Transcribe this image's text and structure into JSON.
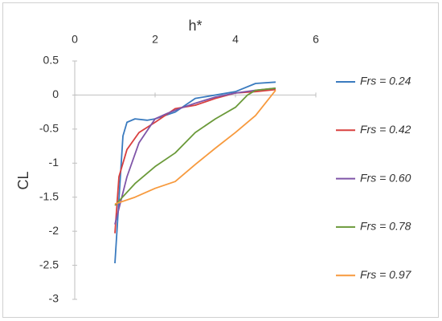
{
  "chart_data": {
    "type": "line",
    "x_label": "h*",
    "y_label": "CL",
    "xlim": [
      0,
      6
    ],
    "xticks": [
      0,
      2,
      4,
      6
    ],
    "ylim": [
      -3,
      0.5
    ],
    "yticks": [
      0.5,
      0,
      -0.5,
      -1,
      -1.5,
      -2,
      -2.5,
      -3
    ],
    "legend": "right",
    "series": [
      {
        "name": "Frs = 0.24",
        "color": "#3a7bbf",
        "x": [
          1,
          1.2,
          1.3,
          1.5,
          1.8,
          2,
          2.5,
          3,
          3.5,
          4,
          4.5,
          5
        ],
        "values": [
          -2.47,
          -0.6,
          -0.4,
          -0.35,
          -0.37,
          -0.35,
          -0.25,
          -0.05,
          0,
          0.05,
          0.17,
          0.19
        ]
      },
      {
        "name": "Frs = 0.42",
        "color": "#d9403f",
        "x": [
          1,
          1.1,
          1.3,
          1.6,
          2,
          2.5,
          3,
          3.5,
          4,
          4.5,
          5
        ],
        "values": [
          -2.03,
          -1.2,
          -0.8,
          -0.55,
          -0.4,
          -0.2,
          -0.15,
          -0.05,
          0.03,
          0.05,
          0.08
        ]
      },
      {
        "name": "Frs = 0.60",
        "color": "#7f55a8",
        "x": [
          1,
          1.3,
          1.6,
          2,
          2.3,
          2.6,
          3,
          3.5,
          4,
          4.5,
          5
        ],
        "values": [
          -1.9,
          -1.2,
          -0.7,
          -0.35,
          -0.27,
          -0.2,
          -0.12,
          -0.03,
          0.03,
          0.07,
          0.1
        ]
      },
      {
        "name": "Frs = 0.78",
        "color": "#6b9a3a",
        "x": [
          1,
          1.5,
          2,
          2.5,
          3,
          3.5,
          4,
          4.3,
          4.5,
          5
        ],
        "values": [
          -1.62,
          -1.3,
          -1.05,
          -0.85,
          -0.55,
          -0.35,
          -0.18,
          0,
          0.07,
          0.1
        ]
      },
      {
        "name": "Frs = 0.97",
        "color": "#f79a3e",
        "x": [
          1,
          1.5,
          2,
          2.5,
          3,
          3.5,
          4,
          4.5,
          5
        ],
        "values": [
          -1.6,
          -1.5,
          -1.37,
          -1.27,
          -1.02,
          -0.78,
          -0.55,
          -0.3,
          0.07
        ]
      }
    ]
  }
}
